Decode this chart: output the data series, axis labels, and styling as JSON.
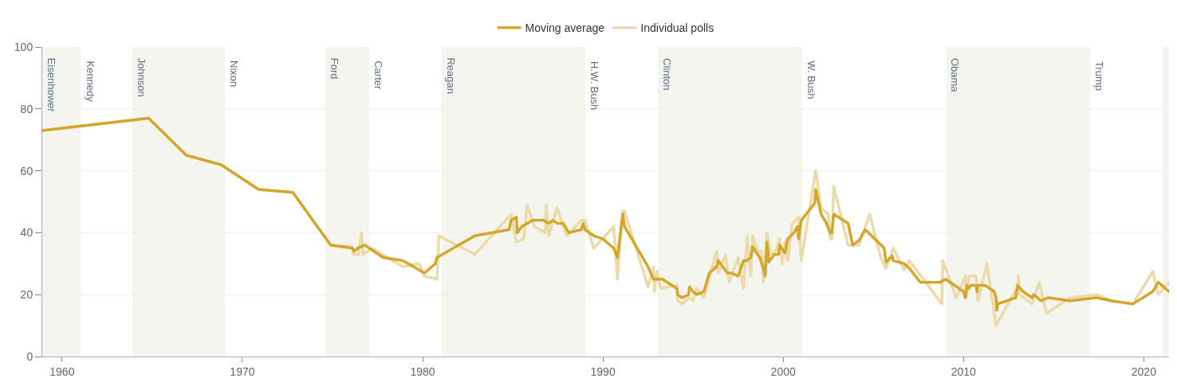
{
  "chart_data": {
    "type": "line",
    "xlim": [
      1958.9,
      2021.4
    ],
    "xticks": [
      1960,
      1970,
      1980,
      1990,
      2000,
      2010,
      2020
    ],
    "ylim": [
      0,
      100
    ],
    "yticks": [
      0,
      20,
      40,
      60,
      80,
      100
    ],
    "grid": "y",
    "legend": "top",
    "series": [
      {
        "name": "Moving average",
        "color": "#d4a72c",
        "x": [
          1958.9,
          1964.8,
          1966.9,
          1968.8,
          1970.9,
          1972.8,
          1974.9,
          1976.1,
          1976.2,
          1976.4,
          1976.8,
          1977.8,
          1978.9,
          1980.1,
          1980.7,
          1980.8,
          1982.9,
          1984.8,
          1984.9,
          1985.2,
          1985.25,
          1985.5,
          1986.1,
          1986.7,
          1987.0,
          1987.2,
          1987.5,
          1987.8,
          1988.1,
          1988.8,
          1988.9,
          1989.0,
          1989.5,
          1990.0,
          1990.6,
          1990.8,
          1991.1,
          1991.2,
          1991.9,
          1992.5,
          1992.8,
          1993.3,
          1994.1,
          1994.15,
          1994.4,
          1994.75,
          1994.8,
          1995.0,
          1995.2,
          1995.6,
          1995.9,
          1996.3,
          1996.4,
          1996.9,
          1997.1,
          1997.5,
          1997.8,
          1998.0,
          1998.2,
          1998.3,
          1998.7,
          1998.9,
          1999.0,
          1999.1,
          1999.2,
          1999.5,
          1999.75,
          1999.8,
          2000.1,
          2000.25,
          2000.6,
          2000.8,
          2000.85,
          2001.0,
          2001.75,
          2001.8,
          2002.1,
          2002.4,
          2002.6,
          2002.7,
          2002.8,
          2003.6,
          2003.85,
          2004.2,
          2004.55,
          2005.6,
          2005.7,
          2006.05,
          2006.1,
          2006.7,
          2007.0,
          2007.6,
          2008.7,
          2009.0,
          2010.0,
          2010.1,
          2010.2,
          2010.3,
          2010.4,
          2010.7,
          2010.75,
          2010.8,
          2011.2,
          2011.7,
          2011.8,
          2011.85,
          2011.9,
          2012.9,
          2013.0,
          2013.3,
          2013.8,
          2013.9,
          2014.3,
          2014.7,
          2015.9,
          2017.4,
          2018.2,
          2019.4,
          2020.5,
          2020.8,
          2021.4
        ],
        "values": [
          73,
          77,
          65,
          62,
          54,
          53,
          36,
          35,
          34,
          35,
          36,
          32,
          31,
          27,
          30,
          32,
          39,
          41,
          44,
          45,
          40,
          42,
          44,
          44,
          43,
          44,
          43,
          43,
          40,
          41,
          43,
          41,
          39,
          38,
          35,
          32,
          46,
          42,
          35,
          29,
          25,
          25,
          22,
          20,
          19,
          20,
          22.5,
          21,
          20,
          21,
          27,
          29,
          31,
          27,
          27,
          26,
          31,
          31,
          32,
          35.5,
          32,
          28.5,
          26,
          37,
          30.5,
          33,
          33,
          36,
          33.5,
          38,
          40,
          42,
          38,
          44,
          49.5,
          54,
          46,
          43,
          40,
          40,
          46,
          43,
          36,
          37.5,
          41,
          35,
          30.5,
          32.5,
          31,
          30,
          28.5,
          24,
          24,
          25,
          21,
          19,
          23,
          22,
          23,
          23,
          21,
          23,
          23,
          21,
          19,
          15,
          17,
          19,
          23,
          21,
          19,
          20,
          18,
          19,
          18,
          19,
          18,
          17,
          21,
          24,
          21
        ]
      },
      {
        "name": "Individual polls",
        "color": "#ecdba9",
        "x": [
          1958.9,
          1964.8,
          1966.9,
          1968.8,
          1970.9,
          1972.8,
          1974.9,
          1976.1,
          1976.15,
          1976.45,
          1976.6,
          1976.7,
          1977.2,
          1978.9,
          1979.8,
          1980.1,
          1980.8,
          1980.9,
          1982.9,
          1984.9,
          1985.2,
          1985.6,
          1985.8,
          1986.2,
          1986.8,
          1986.85,
          1987.0,
          1987.45,
          1988.0,
          1988.8,
          1989.0,
          1989.5,
          1990.6,
          1990.8,
          1991.1,
          1991.2,
          1992.5,
          1992.8,
          1992.85,
          1993.0,
          1993.2,
          1994.1,
          1994.15,
          1994.4,
          1994.8,
          1995.0,
          1995.2,
          1995.6,
          1996.3,
          1996.4,
          1996.8,
          1997.0,
          1997.5,
          1997.8,
          1998.0,
          1998.2,
          1998.3,
          1998.6,
          1998.8,
          1998.9,
          1999.1,
          1999.3,
          1999.6,
          1999.8,
          1999.95,
          2000.1,
          2000.25,
          2000.5,
          2000.85,
          2001.0,
          2001.8,
          2002.1,
          2002.5,
          2002.6,
          2002.7,
          2002.8,
          2003.6,
          2004.2,
          2004.8,
          2005.4,
          2005.7,
          2006.1,
          2006.7,
          2007.0,
          2008.8,
          2008.85,
          2009.6,
          2010.1,
          2010.15,
          2010.3,
          2010.7,
          2010.8,
          2011.3,
          2011.8,
          2013.0,
          2013.05,
          2013.1,
          2013.8,
          2014.2,
          2014.6,
          2015.9,
          2017.4,
          2018.2,
          2019.4,
          2020.5,
          2020.8,
          2021.4
        ],
        "values": [
          73,
          77,
          65,
          62,
          54,
          53,
          36,
          35.5,
          33,
          33,
          40,
          33,
          35,
          29,
          30,
          26,
          25,
          39,
          33,
          46,
          37,
          38,
          49,
          42,
          40,
          49,
          39,
          48,
          39,
          44,
          44,
          35,
          42,
          25,
          47,
          47,
          22.5,
          29,
          21,
          27.5,
          22,
          23,
          18,
          17,
          19,
          18,
          22,
          19,
          34,
          27,
          33,
          24,
          32,
          22,
          39,
          26,
          39,
          34,
          34,
          24,
          40,
          33,
          34,
          38,
          30,
          37,
          31,
          43,
          45,
          31,
          60,
          48,
          46,
          38,
          38,
          55,
          36,
          36,
          46,
          32,
          28.5,
          35,
          28,
          31,
          17,
          31,
          19,
          26,
          19,
          26,
          26,
          18,
          30,
          10,
          22.5,
          26,
          20,
          17,
          24,
          14,
          19,
          20,
          18,
          17,
          27.5,
          20,
          24
        ]
      }
    ],
    "bands": [
      {
        "axis": "x",
        "from": 1958.9,
        "to": 1961.05,
        "label": "Eisenhower",
        "color": "#f5f5ef"
      },
      {
        "axis": "x",
        "from": 1963.9,
        "to": 1969.05,
        "label": "Johnson",
        "color": "#f5f5ef"
      },
      {
        "axis": "x",
        "from": 1974.6,
        "to": 1977.05,
        "label": "Ford",
        "color": "#f5f5ef"
      },
      {
        "axis": "x",
        "from": 1981.05,
        "to": 1989.05,
        "label": "Reagan",
        "color": "#f5f5ef"
      },
      {
        "axis": "x",
        "from": 1993.05,
        "to": 2001.05,
        "label": "Clinton",
        "color": "#f5f5ef"
      },
      {
        "axis": "x",
        "from": 2009.05,
        "to": 2017.05,
        "label": "Obama",
        "color": "#f5f5ef"
      },
      {
        "axis": "x",
        "from": 2021.05,
        "to": 2021.4,
        "color": "#f5f5ef"
      }
    ],
    "annotations": [
      {
        "text": "Kennedy",
        "x": 1961.05,
        "y": 96
      },
      {
        "text": "Nixon",
        "x": 1969.05,
        "y": 96
      },
      {
        "text": "Carter",
        "x": 1977.05,
        "y": 96
      },
      {
        "text": "H.W. Bush",
        "x": 1989.05,
        "y": 96
      },
      {
        "text": "W. Bush",
        "x": 2001.05,
        "y": 96
      },
      {
        "text": "Trump",
        "x": 2017.05,
        "y": 96
      }
    ]
  }
}
